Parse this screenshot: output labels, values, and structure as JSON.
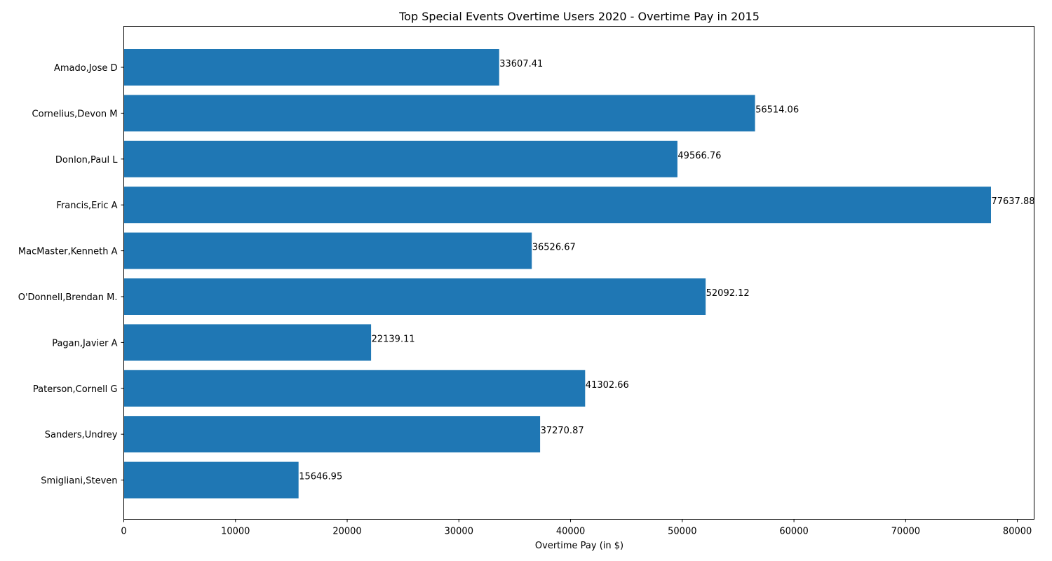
{
  "chart_data": {
    "type": "bar",
    "orientation": "horizontal",
    "title": "Top Special Events Overtime Users 2020 - Overtime Pay in 2015",
    "xlabel": "Overtime Pay (in $)",
    "ylabel": "",
    "xlim": [
      0,
      81500
    ],
    "xticks": [
      0,
      10000,
      20000,
      30000,
      40000,
      50000,
      60000,
      70000,
      80000
    ],
    "xtick_labels": [
      "0",
      "10000",
      "20000",
      "30000",
      "40000",
      "50000",
      "60000",
      "70000",
      "80000"
    ],
    "categories": [
      "Amado,Jose D",
      "Cornelius,Devon M",
      "Donlon,Paul L",
      "Francis,Eric A",
      "MacMaster,Kenneth A",
      "O'Donnell,Brendan M.",
      "Pagan,Javier A",
      "Paterson,Cornell G",
      "Sanders,Undrey",
      "Smigliani,Steven"
    ],
    "values": [
      33607.41,
      56514.06,
      49566.76,
      77637.88,
      36526.67,
      52092.12,
      22139.11,
      41302.66,
      37270.87,
      15646.95
    ],
    "value_labels": [
      "33607.41",
      "56514.06",
      "49566.76",
      "77637.88",
      "36526.67",
      "52092.12",
      "22139.11",
      "41302.66",
      "37270.87",
      "15646.95"
    ],
    "bar_color": "#1f77b4",
    "grid": false,
    "legend": "none"
  }
}
